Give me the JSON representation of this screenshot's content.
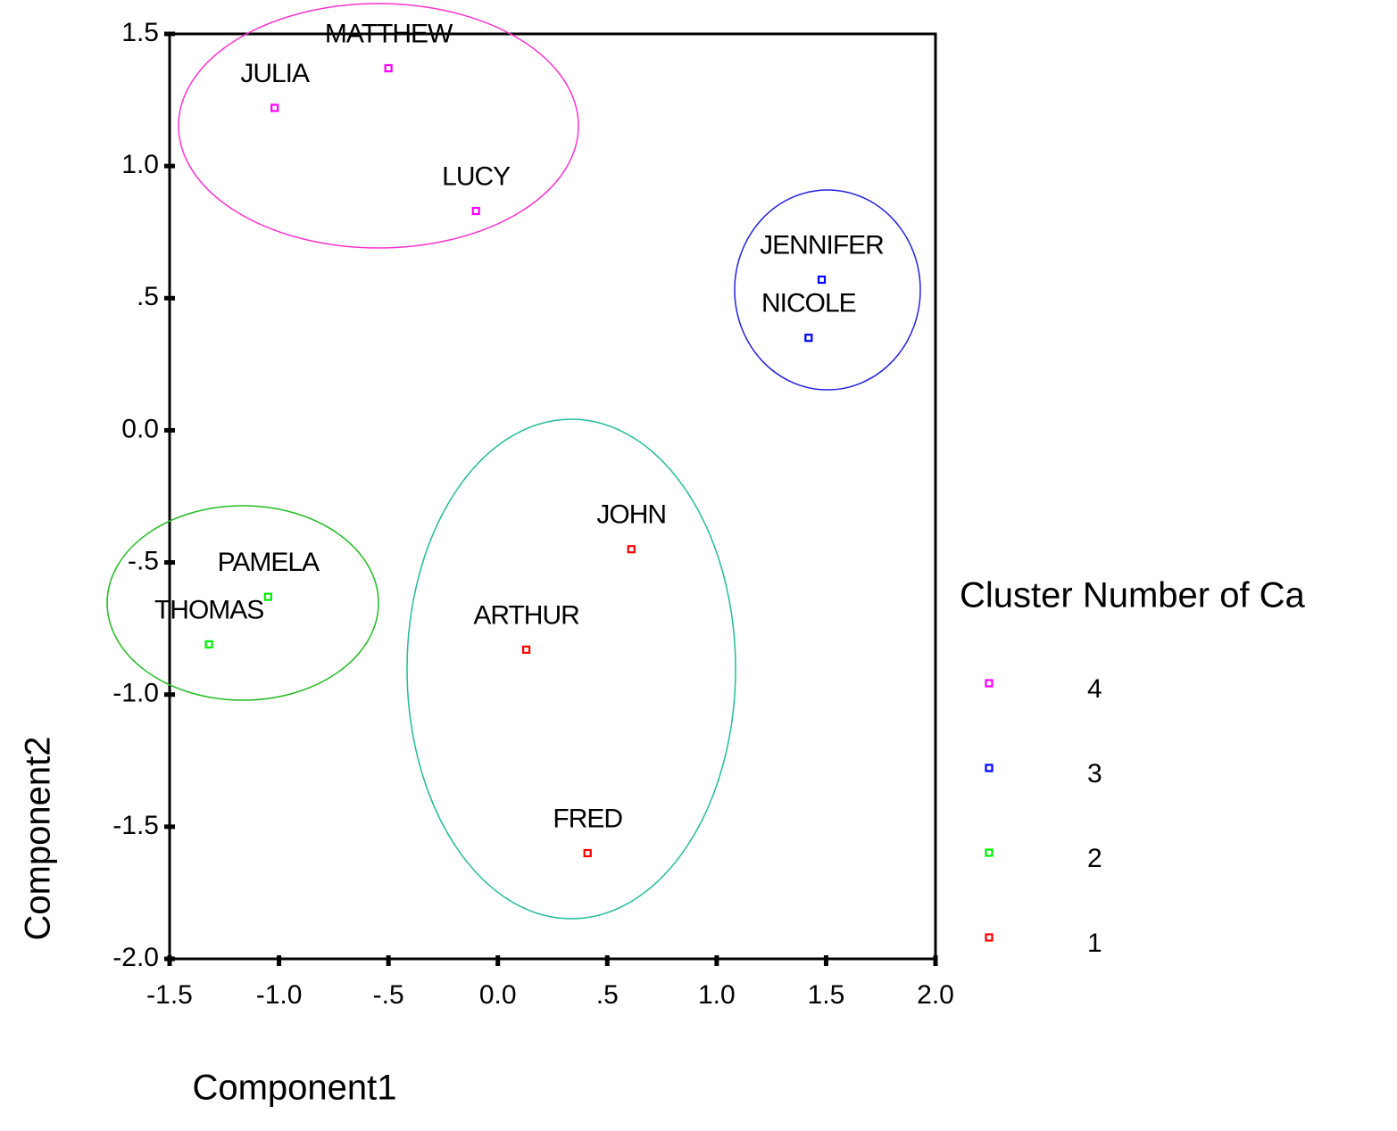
{
  "chart_data": {
    "type": "scatter",
    "x_label": "Component1",
    "y_label": "Component2",
    "legend_title": "Cluster Number of Ca",
    "xlim": [
      -1.5,
      2.0
    ],
    "ylim": [
      -2.0,
      1.5
    ],
    "xticks": [
      -1.5,
      {
        "value": -1.0,
        "label": "-1.0"
      },
      {
        "value": -0.5,
        "label": "-.5"
      },
      {
        "value": 0,
        "label": "0.0"
      },
      {
        "value": 0.5,
        "label": ".5"
      },
      {
        "value": 1.0,
        "label": "1.0"
      },
      1.5,
      {
        "value": 2.0,
        "label": "2.0"
      }
    ],
    "yticks": [
      1.5,
      {
        "value": 1.0,
        "label": "1.0"
      },
      {
        "value": 0.5,
        "label": ".5"
      },
      {
        "value": 0,
        "label": "0.0"
      },
      {
        "value": -0.5,
        "label": "-.5"
      },
      {
        "value": -1.0,
        "label": "-1.0"
      },
      -1.5,
      {
        "value": -2.0,
        "label": "-2.0"
      }
    ],
    "series": [
      {
        "name": "4",
        "color": "#ff00ff",
        "labels": [
          "MATTHEW",
          "JULIA",
          "LUCY"
        ],
        "x": [
          -0.5,
          -1.02,
          -0.1
        ],
        "y": [
          1.37,
          1.22,
          0.83
        ]
      },
      {
        "name": "3",
        "color": "#0000ff",
        "labels": [
          "JENNIFER",
          "NICOLE"
        ],
        "x": [
          1.48,
          1.42
        ],
        "y": [
          0.57,
          0.35
        ]
      },
      {
        "name": "2",
        "color": "#00ee00",
        "labels": [
          "PAMELA",
          "THOMAS"
        ],
        "x": [
          -1.05,
          -1.32
        ],
        "y": [
          -0.63,
          -0.81
        ]
      },
      {
        "name": "1",
        "color": "#ff0000",
        "labels": [
          "JOHN",
          "ARTHUR",
          "FRED"
        ],
        "x": [
          0.61,
          0.13,
          0.41
        ],
        "y": [
          -0.45,
          -0.83,
          -1.6
        ]
      }
    ]
  }
}
